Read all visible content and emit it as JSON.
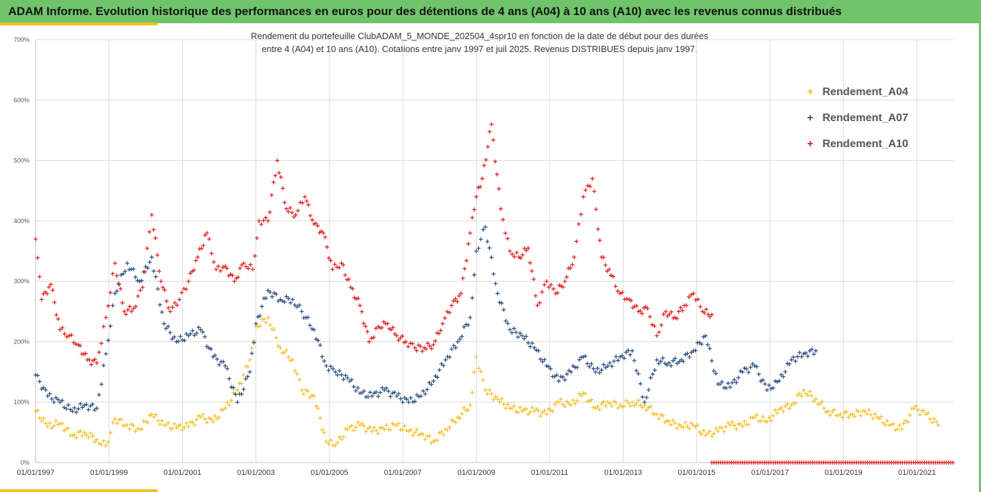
{
  "header": {
    "title": "ADAM Informe. Evolution historique des performances en euros pour des détentions de 4 ans (A04) à 10 ans (A10) avec les revenus connus distribués"
  },
  "chart_data": {
    "type": "scatter",
    "title_line1": "Rendement du portefeuille ClubADAM_5_MONDE_202504_4spr10  en fonction de la date de début pour des durées",
    "title_line2": "entre 4 (A04) et 10 ans (A10). Cotations entre janv 1997 et juil 2025. Revenus DISTRIBUES depuis janv 1997.",
    "xlim": [
      "1997-01-01",
      "2021-12-31"
    ],
    "ylim": [
      0,
      700
    ],
    "y_unit": "%",
    "y_ticks": [
      0,
      100,
      200,
      300,
      400,
      500,
      600,
      700
    ],
    "y_tick_labels": [
      "0%",
      "100%",
      "200%",
      "300%",
      "400%",
      "500%",
      "600%",
      "700%"
    ],
    "x_ticks": [
      "1997-01-01",
      "1999-01-01",
      "2001-01-01",
      "2003-01-01",
      "2005-01-01",
      "2007-01-01",
      "2009-01-01",
      "2011-01-01",
      "2013-01-01",
      "2015-01-01",
      "2017-01-01",
      "2019-01-01",
      "2021-01-01"
    ],
    "x_tick_labels": [
      "01/01/1997",
      "01/01/1999",
      "01/01/2001",
      "01/01/2003",
      "01/01/2005",
      "01/01/2007",
      "01/01/2009",
      "01/01/2011",
      "01/01/2013",
      "01/01/2015",
      "01/01/2017",
      "01/01/2019",
      "01/01/2021"
    ],
    "grid": true,
    "legend_position": "right",
    "marker": "+",
    "series": [
      {
        "name": "Rendement_A04",
        "color": "#f2c12e",
        "x": [
          "1997-01-01",
          "1997-05-01",
          "1997-09-01",
          "1998-01-01",
          "1998-05-01",
          "1998-09-01",
          "1998-12-01",
          "1999-03-01",
          "1999-07-01",
          "1999-11-01",
          "2000-03-01",
          "2000-07-01",
          "2000-11-01",
          "2001-03-01",
          "2001-07-01",
          "2001-11-01",
          "2002-03-01",
          "2002-07-01",
          "2002-11-01",
          "2003-01-01",
          "2003-05-01",
          "2003-09-01",
          "2004-01-01",
          "2004-04-01",
          "2004-08-01",
          "2004-12-01",
          "2005-03-01",
          "2005-07-01",
          "2005-11-01",
          "2006-03-01",
          "2006-07-01",
          "2006-11-01",
          "2007-03-01",
          "2007-07-01",
          "2007-11-01",
          "2008-03-01",
          "2008-07-01",
          "2008-11-01",
          "2009-01-01",
          "2009-04-01",
          "2009-08-01",
          "2009-12-01",
          "2010-04-01",
          "2010-08-01",
          "2010-12-01",
          "2011-04-01",
          "2011-08-01",
          "2011-12-01",
          "2012-04-01",
          "2012-08-01",
          "2012-12-01",
          "2013-04-01",
          "2013-08-01",
          "2013-12-01",
          "2014-04-01",
          "2014-08-01",
          "2014-12-01",
          "2015-04-01",
          "2015-08-01",
          "2015-12-01",
          "2016-04-01",
          "2016-08-01",
          "2016-12-01",
          "2017-04-01",
          "2017-08-01",
          "2017-12-01",
          "2018-04-01",
          "2018-08-01",
          "2018-12-01",
          "2019-04-01",
          "2019-08-01",
          "2019-12-01",
          "2020-04-01",
          "2020-08-01",
          "2020-12-01",
          "2021-04-01",
          "2021-08-01"
        ],
        "y": [
          85,
          60,
          65,
          45,
          50,
          38,
          28,
          72,
          62,
          55,
          80,
          62,
          58,
          60,
          75,
          68,
          90,
          120,
          170,
          225,
          240,
          190,
          170,
          120,
          110,
          35,
          28,
          55,
          62,
          52,
          55,
          62,
          52,
          48,
          35,
          55,
          75,
          95,
          175,
          120,
          105,
          90,
          85,
          85,
          80,
          100,
          95,
          115,
          90,
          100,
          95,
          100,
          95,
          80,
          68,
          60,
          62,
          45,
          52,
          62,
          60,
          75,
          68,
          88,
          95,
          120,
          105,
          85,
          80,
          80,
          85,
          75,
          62,
          55,
          90,
          80,
          62
        ]
      },
      {
        "name": "Rendement_A07",
        "color": "#2e4e7e",
        "x": [
          "1997-01-01",
          "1997-05-01",
          "1997-09-01",
          "1998-01-01",
          "1998-05-01",
          "1998-09-01",
          "1998-12-01",
          "1999-03-01",
          "1999-07-01",
          "1999-11-01",
          "2000-03-01",
          "2000-07-01",
          "2000-11-01",
          "2001-03-01",
          "2001-07-01",
          "2001-11-01",
          "2002-03-01",
          "2002-07-01",
          "2002-11-01",
          "2003-01-01",
          "2003-05-01",
          "2003-09-01",
          "2004-01-01",
          "2004-04-01",
          "2004-08-01",
          "2004-12-01",
          "2005-03-01",
          "2005-07-01",
          "2005-11-01",
          "2006-03-01",
          "2006-07-01",
          "2006-11-01",
          "2007-03-01",
          "2007-07-01",
          "2007-11-01",
          "2008-03-01",
          "2008-07-01",
          "2008-11-01",
          "2009-01-01",
          "2009-04-01",
          "2009-08-01",
          "2009-12-01",
          "2010-04-01",
          "2010-08-01",
          "2010-12-01",
          "2011-04-01",
          "2011-08-01",
          "2011-12-01",
          "2012-04-01",
          "2012-08-01",
          "2012-12-01",
          "2013-04-01",
          "2013-08-01",
          "2013-12-01",
          "2014-04-01",
          "2014-08-01",
          "2014-12-01",
          "2015-04-01",
          "2015-08-01",
          "2015-12-01",
          "2016-04-01",
          "2016-08-01",
          "2016-12-01",
          "2017-04-01",
          "2017-08-01",
          "2017-12-01",
          "2018-04-01"
        ],
        "y": [
          145,
          110,
          100,
          85,
          95,
          90,
          180,
          280,
          330,
          300,
          340,
          230,
          200,
          210,
          220,
          175,
          160,
          100,
          150,
          230,
          285,
          270,
          270,
          250,
          220,
          160,
          150,
          140,
          115,
          110,
          120,
          110,
          100,
          110,
          135,
          170,
          200,
          240,
          350,
          390,
          280,
          220,
          210,
          190,
          160,
          135,
          150,
          175,
          150,
          160,
          175,
          185,
          100,
          170,
          165,
          170,
          185,
          210,
          130,
          125,
          150,
          160,
          120,
          135,
          170,
          180,
          185
        ]
      },
      {
        "name": "Rendement_A10",
        "color": "#e02020",
        "x": [
          "1997-01-01",
          "1997-03-01",
          "1997-06-01",
          "1997-09-01",
          "1997-12-01",
          "1998-03-01",
          "1998-06-01",
          "1998-09-01",
          "1998-12-01",
          "1999-03-01",
          "1999-06-01",
          "1999-09-01",
          "1999-12-01",
          "2000-03-01",
          "2000-06-01",
          "2000-09-01",
          "2000-12-01",
          "2001-03-01",
          "2001-06-01",
          "2001-09-01",
          "2001-12-01",
          "2002-03-01",
          "2002-06-01",
          "2002-09-01",
          "2002-12-01",
          "2003-02-01",
          "2003-05-01",
          "2003-08-01",
          "2003-11-01",
          "2004-02-01",
          "2004-05-01",
          "2004-08-01",
          "2004-11-01",
          "2005-02-01",
          "2005-05-01",
          "2005-08-01",
          "2005-11-01",
          "2006-02-01",
          "2006-05-01",
          "2006-08-01",
          "2006-11-01",
          "2007-02-01",
          "2007-05-01",
          "2007-08-01",
          "2007-11-01",
          "2008-02-01",
          "2008-05-01",
          "2008-08-01",
          "2008-11-01",
          "2009-01-01",
          "2009-03-01",
          "2009-06-01",
          "2009-09-01",
          "2009-12-01",
          "2010-03-01",
          "2010-06-01",
          "2010-09-01",
          "2010-12-01",
          "2011-03-01",
          "2011-06-01",
          "2011-09-01",
          "2011-12-01",
          "2012-03-01",
          "2012-06-01",
          "2012-09-01",
          "2012-12-01",
          "2013-03-01",
          "2013-06-01",
          "2013-09-01",
          "2013-12-01",
          "2014-03-01",
          "2014-06-01",
          "2014-09-01",
          "2014-12-01",
          "2015-03-01",
          "2015-06-01"
        ],
        "y": [
          370,
          270,
          295,
          220,
          210,
          195,
          170,
          165,
          240,
          330,
          250,
          255,
          290,
          410,
          300,
          250,
          270,
          300,
          340,
          380,
          320,
          325,
          300,
          330,
          320,
          400,
          400,
          500,
          420,
          410,
          440,
          395,
          380,
          320,
          330,
          290,
          260,
          200,
          225,
          230,
          210,
          200,
          190,
          190,
          195,
          230,
          260,
          280,
          380,
          440,
          470,
          560,
          420,
          350,
          340,
          355,
          260,
          300,
          280,
          300,
          340,
          440,
          470,
          340,
          310,
          280,
          270,
          250,
          255,
          210,
          250,
          240,
          260,
          280,
          250,
          245
        ]
      }
    ],
    "extra_series": {
      "name": "zero_markers",
      "color": "#e02020",
      "x_range": [
        "2015-06-01",
        "2021-12-31"
      ],
      "y": 0
    }
  }
}
